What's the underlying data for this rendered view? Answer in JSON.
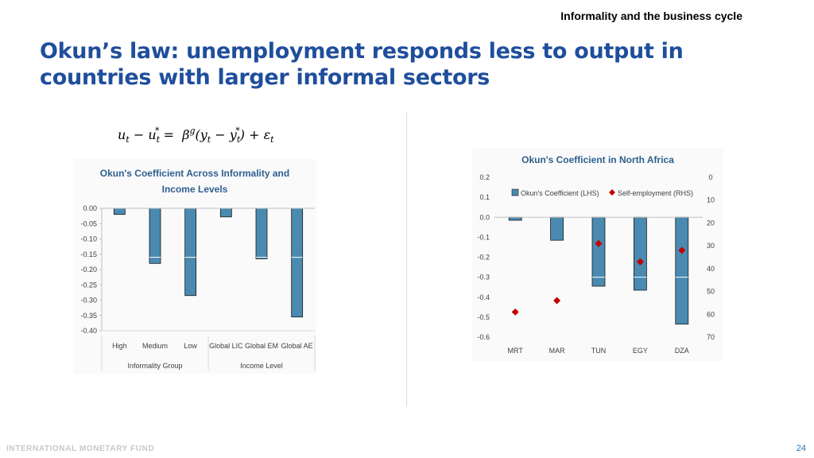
{
  "header": {
    "section": "Informality and the business cycle"
  },
  "slide": {
    "title_line1": "Okun’s law: unemployment responds less to output in",
    "title_line2": "countries with larger informal sectors"
  },
  "footer": {
    "organization": "INTERNATIONAL MONETARY FUND",
    "page_number": "24"
  },
  "colors": {
    "bar": "#4a8ab0",
    "bar_edge": "#1a1a1a",
    "marker": "#c00000",
    "title": "#1f4e9c",
    "chart_title": "#2e5f8f"
  },
  "chart_data": [
    {
      "type": "bar",
      "title_line1": "Okun's Coefficient Across Informality and",
      "title_line2": "Income Levels",
      "categories": [
        "High",
        "Medium",
        "Low",
        "Global LIC",
        "Global EM",
        "Global AE"
      ],
      "groups": [
        {
          "label": "Informality Group",
          "span": [
            0,
            2
          ]
        },
        {
          "label": "Income Level",
          "span": [
            3,
            5
          ]
        }
      ],
      "series": [
        {
          "values": [
            -0.02,
            -0.18,
            -0.285,
            -0.028,
            -0.165,
            -0.355
          ]
        }
      ],
      "reference_line": [
        null,
        -0.16,
        -0.16,
        null,
        -0.16,
        -0.16
      ],
      "ylim": [
        -0.4,
        0.0
      ],
      "yticks": [
        "0.00",
        "-0.05",
        "-0.10",
        "-0.15",
        "-0.20",
        "-0.25",
        "-0.30",
        "-0.35",
        "-0.40"
      ],
      "ytick_values": [
        0,
        -0.05,
        -0.1,
        -0.15,
        -0.2,
        -0.25,
        -0.3,
        -0.35,
        -0.4
      ],
      "grid": false,
      "legend": "none"
    },
    {
      "type": "bar",
      "title": "Okun's Coefficient in North Africa",
      "categories": [
        "MRT",
        "MAR",
        "TUN",
        "EGY",
        "DZA"
      ],
      "series": [
        {
          "name": "Okun's Coefficient (LHS)",
          "axis": "left",
          "kind": "bar",
          "values": [
            -0.015,
            -0.115,
            -0.345,
            -0.365,
            -0.535
          ]
        },
        {
          "name": "Self-employment (RHS)",
          "axis": "right",
          "kind": "marker",
          "values": [
            59,
            54,
            29,
            37,
            32
          ]
        }
      ],
      "reference_line": [
        null,
        null,
        -0.3,
        -0.3,
        -0.3
      ],
      "ylim_left": [
        -0.6,
        0.2
      ],
      "yticks_left": [
        "0.2",
        "0.1",
        "0.0",
        "-0.1",
        "-0.2",
        "-0.3",
        "-0.4",
        "-0.5",
        "-0.6"
      ],
      "ytick_values_left": [
        0.2,
        0.1,
        0.0,
        -0.1,
        -0.2,
        -0.3,
        -0.4,
        -0.5,
        -0.6
      ],
      "ylim_right": [
        0,
        70
      ],
      "yticks_right": [
        "0",
        "10",
        "20",
        "30",
        "40",
        "50",
        "60",
        "70"
      ],
      "ytick_values_right": [
        0,
        10,
        20,
        30,
        40,
        50,
        60,
        70
      ],
      "right_axis_inverted": true,
      "grid": false,
      "legend": "top"
    }
  ]
}
